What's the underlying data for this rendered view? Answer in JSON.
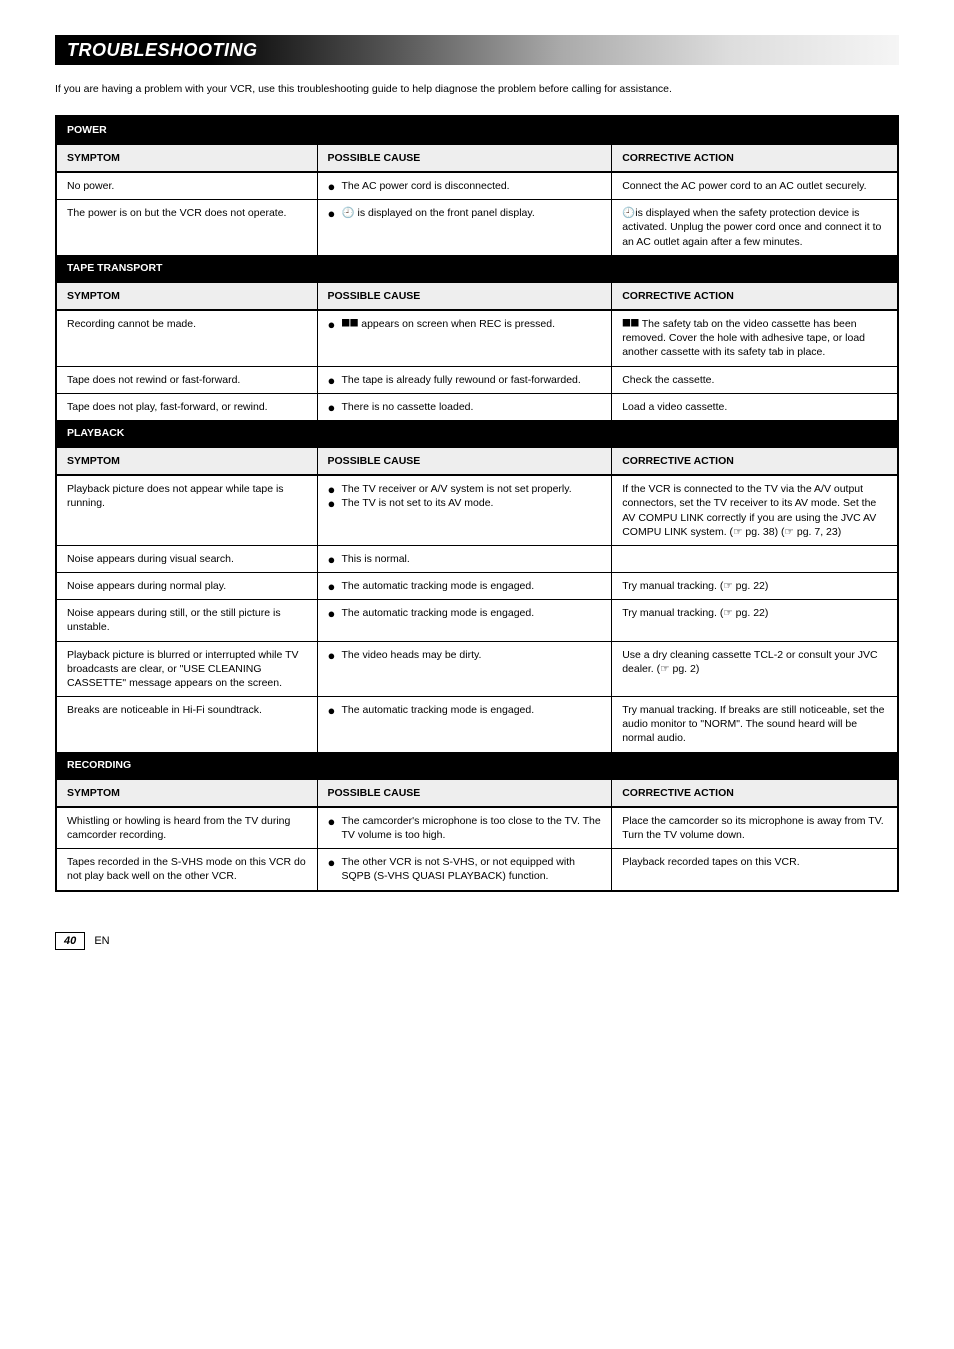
{
  "header": {
    "title": "TROUBLESHOOTING"
  },
  "intro": "If you are having a problem with your VCR, use this troubleshooting guide to help diagnose the problem before calling for assistance.",
  "footer": {
    "page_number": "40",
    "footer_text_en": "EN"
  },
  "columns": {
    "symptom": "SYMPTOM",
    "cause": "POSSIBLE CAUSE",
    "action": "CORRECTIVE ACTION"
  },
  "sections": [
    {
      "title": "POWER",
      "rows": [
        {
          "symptom": "No power.",
          "causes": [
            {
              "text": "The AC power cord is disconnected."
            }
          ],
          "action": "Connect the AC power cord to an AC outlet securely."
        },
        {
          "symptom": "The power is on but the VCR does not operate.",
          "causes": [
            {
              "icon": "clock",
              "text": "is displayed on the front panel display."
            }
          ],
          "action": "is displayed when the safety protection device is activated. Unplug the power cord once and connect it to an AC outlet again after a few minutes.",
          "action_prefix_icon": "clock"
        }
      ]
    },
    {
      "title": "TAPE TRANSPORT",
      "rows": [
        {
          "symptom": "Recording cannot be made.",
          "causes": [
            {
              "icon": "protect",
              "text": "appears on screen when REC is pressed."
            }
          ],
          "action": "The safety tab on the video cassette has been removed. Cover the hole with adhesive tape, or load another cassette with its safety tab in place.",
          "action_prefix_icon": "protect_inline"
        },
        {
          "symptom": "Tape does not rewind or fast-forward.",
          "causes": [
            {
              "text": "The tape is already fully rewound or fast-forwarded."
            }
          ],
          "action": "Check the cassette."
        },
        {
          "symptom": "Tape does not play, fast-forward, or rewind.",
          "causes": [
            {
              "text": "There is no cassette loaded."
            }
          ],
          "action": "Load a video cassette."
        }
      ]
    },
    {
      "title": "PLAYBACK",
      "rows": [
        {
          "symptom": "Playback picture does not appear while tape is running.",
          "causes": [
            {
              "text": "The TV receiver or A/V system is not set properly."
            },
            {
              "text": "The TV is not set to its AV mode."
            }
          ],
          "action": "If the VCR is connected to the TV via the A/V output connectors, set the TV receiver to its AV mode. Set the AV COMPU LINK correctly if you are using the JVC AV COMPU LINK system. (☞ pg. 38) (☞ pg. 7, 23)"
        },
        {
          "symptom": "Noise appears during visual search.",
          "causes": [
            {
              "text": "This is normal."
            }
          ],
          "action": ""
        },
        {
          "symptom": "Noise appears during normal play.",
          "causes": [
            {
              "text": "The automatic tracking mode is engaged."
            }
          ],
          "action": "Try manual tracking. (☞ pg. 22)"
        },
        {
          "symptom": "Noise appears during still, or the still picture is unstable.",
          "causes": [
            {
              "text": "The automatic tracking mode is engaged."
            }
          ],
          "action": "Try manual tracking. (☞ pg. 22)"
        },
        {
          "symptom": "Playback picture is blurred or interrupted while TV broadcasts are clear, or \"USE CLEANING CASSETTE\" message appears on the screen.",
          "causes": [
            {
              "text": "The video heads may be dirty."
            }
          ],
          "action": "Use a dry cleaning cassette TCL-2 or consult your JVC dealer. (☞ pg. 2)"
        },
        {
          "symptom": "Breaks are noticeable in Hi-Fi soundtrack.",
          "causes": [
            {
              "text": "The automatic tracking mode is engaged."
            }
          ],
          "action": "Try manual tracking. If breaks are still noticeable, set the audio monitor to \"NORM\". The sound heard will be normal audio."
        }
      ]
    },
    {
      "title": "RECORDING",
      "rows": [
        {
          "symptom": "Whistling or howling is heard from the TV during camcorder recording.",
          "causes": [
            {
              "text": "The camcorder's microphone is too close to the TV. The TV volume is too high."
            }
          ],
          "action": "Place the camcorder so its microphone is away from TV. Turn the TV volume down."
        },
        {
          "symptom": "Tapes recorded in the S-VHS mode on this VCR do not play back well on the other VCR.",
          "causes": [
            {
              "text": "The other VCR is not S-VHS, or not equipped with SQPB (S-VHS QUASI PLAYBACK) function."
            }
          ],
          "action": "Playback recorded tapes on this VCR."
        }
      ]
    }
  ]
}
